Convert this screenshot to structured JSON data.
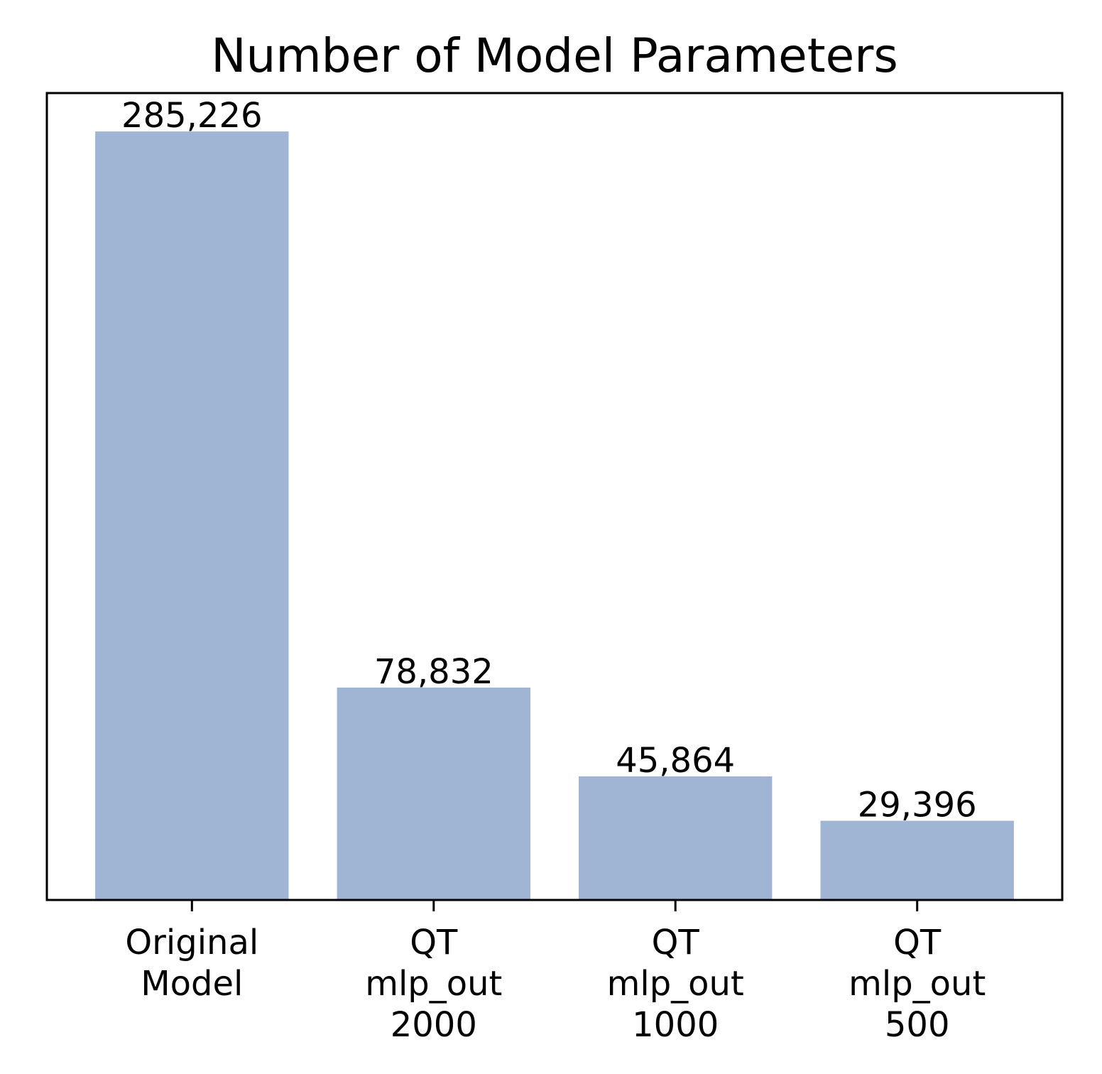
{
  "chart_data": {
    "type": "bar",
    "title": "Number of Model Parameters",
    "xlabel": "",
    "ylabel": "",
    "categories": [
      [
        "Original",
        "Model"
      ],
      [
        "QT",
        "mlp_out",
        "2000"
      ],
      [
        "QT",
        "mlp_out",
        "1000"
      ],
      [
        "QT",
        "mlp_out",
        "500"
      ]
    ],
    "values": [
      285226,
      78832,
      45864,
      29396
    ],
    "value_labels": [
      "285,226",
      "78,832",
      "45,864",
      "29,396"
    ],
    "ylim": [
      0,
      299487
    ],
    "y_ticks_visible": false,
    "grid": false,
    "legend": "none",
    "bar_color": "#a0b4d4",
    "axis_color": "#000000"
  }
}
